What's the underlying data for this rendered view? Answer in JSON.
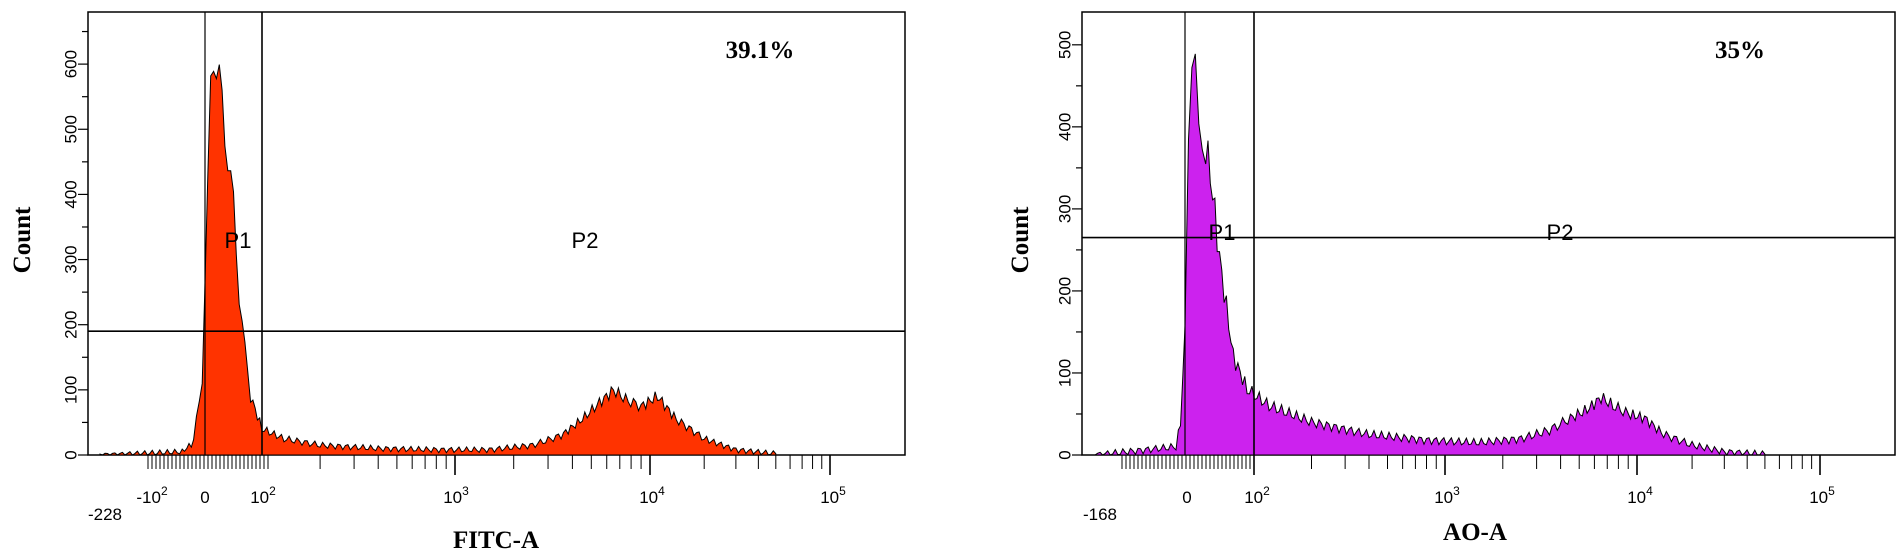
{
  "chart_data": [
    {
      "type": "area",
      "xlabel": "FITC-A",
      "ylabel": "Count",
      "annotation": "39.1%",
      "gates": [
        "P1",
        "P2"
      ],
      "gate_x_divider": 100,
      "gate_y_divider": 190,
      "fill_color": "#ff3300",
      "x_scale": "biexponential",
      "xlim": [
        -228,
        150000
      ],
      "ylim": [
        0,
        680
      ],
      "y_ticks": [
        "0",
        "100",
        "200",
        "300",
        "400",
        "500",
        "600"
      ],
      "x_tick_labels": [
        "-228",
        "-10^2",
        "0",
        "10^2",
        "10^3",
        "10^4",
        "10^5"
      ],
      "x": [
        -150,
        -40,
        -20,
        -5,
        5,
        10,
        15,
        20,
        30,
        40,
        50,
        60,
        70,
        80,
        100,
        130,
        200,
        400,
        800,
        1500,
        2500,
        3500,
        4500,
        5500,
        6500,
        7500,
        9000,
        11000,
        14000,
        20000,
        30000,
        50000
      ],
      "y": [
        0,
        5,
        20,
        120,
        400,
        580,
        630,
        590,
        540,
        460,
        380,
        250,
        160,
        90,
        40,
        25,
        15,
        10,
        8,
        8,
        15,
        30,
        55,
        80,
        100,
        85,
        75,
        90,
        55,
        25,
        8,
        2
      ]
    },
    {
      "type": "area",
      "xlabel": "AO-A",
      "ylabel": "Count",
      "annotation": "35%",
      "gates": [
        "P1",
        "P2"
      ],
      "gate_x_divider": 100,
      "gate_y_divider": 265,
      "fill_color": "#cc22ee",
      "x_scale": "biexponential",
      "xlim": [
        -168,
        150000
      ],
      "ylim": [
        0,
        540
      ],
      "y_ticks": [
        "0",
        "100",
        "200",
        "300",
        "400",
        "500"
      ],
      "x_tick_labels": [
        "-168",
        "0",
        "10^2",
        "10^3",
        "10^4",
        "10^5"
      ],
      "x": [
        -100,
        -10,
        -5,
        0,
        5,
        10,
        15,
        20,
        25,
        30,
        40,
        50,
        60,
        70,
        90,
        120,
        200,
        400,
        800,
        1500,
        2500,
        3500,
        4500,
        5500,
        6500,
        7500,
        9000,
        11000,
        14000,
        20000,
        30000,
        50000
      ],
      "y": [
        0,
        10,
        40,
        150,
        380,
        480,
        510,
        430,
        400,
        380,
        320,
        240,
        180,
        120,
        80,
        60,
        40,
        25,
        18,
        15,
        20,
        30,
        45,
        55,
        70,
        60,
        50,
        45,
        25,
        12,
        4,
        1
      ]
    }
  ]
}
